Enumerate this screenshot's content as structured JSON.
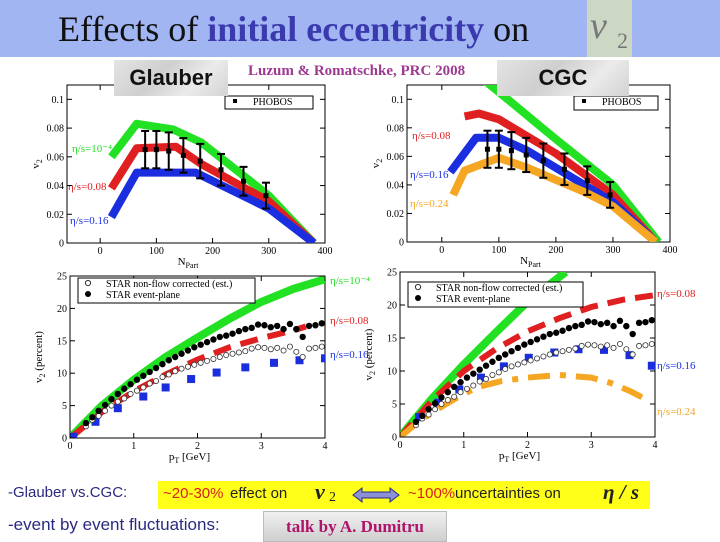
{
  "slide": {
    "title_part1": "Effects of ",
    "title_highlight": "initial eccentricity",
    "title_part2": " on",
    "title_symbol": "v",
    "title_symbol_sub": "2",
    "label_left": "Glauber",
    "label_right": "CGC",
    "reference": "Luzum & Romatschke, PRC 2008"
  },
  "footer": {
    "line1_prefix": "-Glauber vs.CGC:",
    "effect_pct": "~20-30%",
    "effect_text": " effect on",
    "v2_symbol": "v",
    "v2_sub": "2",
    "arrow_icon": "double-arrow-icon",
    "uncert_pct": "~100%",
    "uncert_text": "  uncertainties on",
    "eta_s": "η / s",
    "line2_prefix": "-event by event fluctuations:",
    "talk_button": "talk by A. Dumitru"
  },
  "colors": {
    "green": "#22e022",
    "red": "#e02020",
    "blue": "#1a2ee0",
    "orange": "#f5a623",
    "black": "#000000",
    "highlight": "#ffff1a",
    "title_bar": "#a0b5f2"
  },
  "chart_data": [
    {
      "type": "line",
      "panel": "Glauber",
      "xlabel": "N",
      "xlabel_sub": "Part",
      "ylabel": "v",
      "ylabel_sub": "2",
      "xlim": [
        -59,
        400
      ],
      "ylim": [
        0,
        0.11
      ],
      "xticks": [
        "0",
        "100",
        "200",
        "300",
        "400"
      ],
      "xtick_values": [
        0,
        100,
        200,
        300,
        400
      ],
      "yticks": [
        "0",
        "0.02",
        "0.04",
        "0.06",
        "0.08",
        "0.1"
      ],
      "ytick_values": [
        0,
        0.02,
        0.04,
        0.06,
        0.08,
        0.1
      ],
      "legend": {
        "placement": "top-right",
        "entries": [
          "PHOBOS"
        ]
      },
      "series": [
        {
          "name": "η/s=10⁻⁴",
          "color": "#22e022",
          "style": "band",
          "x": [
            20,
            65,
            130,
            180,
            300,
            380
          ],
          "y": [
            0.06,
            0.083,
            0.079,
            0.07,
            0.033,
            0
          ]
        },
        {
          "name": "η/s=0.08",
          "color": "#e02020",
          "style": "band",
          "x": [
            20,
            65,
            135,
            180,
            300,
            380
          ],
          "y": [
            0.038,
            0.066,
            0.067,
            0.055,
            0.029,
            0
          ]
        },
        {
          "name": "η/s=0.16",
          "color": "#1a2ee0",
          "style": "band",
          "x": [
            20,
            65,
            170,
            300,
            380
          ],
          "y": [
            0.018,
            0.049,
            0.049,
            0.024,
            0
          ]
        },
        {
          "name": "PHOBOS",
          "color": "#000000",
          "style": "errorbar",
          "x": [
            80,
            100,
            122,
            148,
            178,
            215,
            255,
            295
          ],
          "y": [
            0.065,
            0.065,
            0.064,
            0.061,
            0.057,
            0.051,
            0.043,
            0.033
          ],
          "err": [
            0.013,
            0.013,
            0.013,
            0.012,
            0.012,
            0.011,
            0.01,
            0.009
          ]
        }
      ]
    },
    {
      "type": "line",
      "panel": "CGC",
      "xlabel": "N",
      "xlabel_sub": "Part",
      "ylabel": "v",
      "ylabel_sub": "2",
      "xlim": [
        -61,
        400
      ],
      "ylim": [
        0,
        0.11
      ],
      "xticks": [
        "0",
        "100",
        "200",
        "300",
        "400"
      ],
      "xtick_values": [
        0,
        100,
        200,
        300,
        400
      ],
      "yticks": [
        "0",
        "0.02",
        "0.04",
        "0.06",
        "0.08",
        "0.1"
      ],
      "ytick_values": [
        0,
        0.02,
        0.04,
        0.06,
        0.08,
        0.1
      ],
      "legend": {
        "placement": "top-right",
        "entries": [
          "PHOBOS"
        ]
      },
      "series": [
        {
          "name": "",
          "color": "#22e022",
          "style": "band",
          "x": [
            60,
            100,
            200,
            300,
            380
          ],
          "y": [
            0.118,
            0.105,
            0.072,
            0.04,
            0
          ]
        },
        {
          "name": "η/s=0.08",
          "color": "#e02020",
          "style": "band",
          "x": [
            40,
            65,
            100,
            200,
            300,
            375
          ],
          "y": [
            0.088,
            0.09,
            0.086,
            0.062,
            0.033,
            0
          ]
        },
        {
          "name": "η/s=0.16",
          "color": "#1a2ee0",
          "style": "band",
          "x": [
            15,
            60,
            100,
            150,
            250,
            300,
            375
          ],
          "y": [
            0.049,
            0.073,
            0.073,
            0.064,
            0.04,
            0.028,
            0
          ]
        },
        {
          "name": "η/s=0.24",
          "color": "#f5a623",
          "style": "band",
          "x": [
            20,
            40,
            100,
            150,
            250,
            300,
            375
          ],
          "y": [
            0.033,
            0.05,
            0.059,
            0.052,
            0.035,
            0.025,
            0
          ]
        },
        {
          "name": "PHOBOS",
          "color": "#000000",
          "style": "errorbar",
          "x": [
            80,
            100,
            122,
            148,
            178,
            215,
            255,
            295
          ],
          "y": [
            0.065,
            0.065,
            0.064,
            0.061,
            0.057,
            0.051,
            0.043,
            0.033
          ],
          "err": [
            0.013,
            0.013,
            0.013,
            0.012,
            0.012,
            0.011,
            0.01,
            0.009
          ]
        }
      ]
    },
    {
      "type": "line",
      "panel": "Glauber",
      "xlabel": "p",
      "xlabel_sub": "T",
      "xlabel_unit": " [GeV]",
      "ylabel": "v",
      "ylabel_sub": "2",
      "ylabel_unit": " (percent)",
      "xlim": [
        0,
        4
      ],
      "ylim": [
        0,
        25
      ],
      "xticks": [
        "0",
        "1",
        "2",
        "3",
        "4"
      ],
      "xtick_values": [
        0,
        1,
        2,
        3,
        4
      ],
      "yticks": [
        "0",
        "5",
        "10",
        "15",
        "20",
        "25"
      ],
      "ytick_values": [
        0,
        5,
        10,
        15,
        20,
        25
      ],
      "legend": {
        "placement": "top-left",
        "entries": [
          "STAR non-flow corrected (est.)",
          "STAR event-plane"
        ]
      },
      "series": [
        {
          "name": "η/s=10⁻⁴",
          "color": "#22e022",
          "style": "band",
          "x": [
            0,
            0.5,
            1,
            1.5,
            2,
            2.5,
            3,
            3.5,
            4
          ],
          "y": [
            0,
            5,
            9,
            12.5,
            15.5,
            18.4,
            21,
            23,
            24.5
          ]
        },
        {
          "name": "η/s=0.08",
          "color": "#e02020",
          "style": "dash",
          "x": [
            0,
            0.5,
            1,
            1.5,
            2,
            2.5,
            3,
            3.5,
            3.7
          ],
          "y": [
            0,
            4,
            7.2,
            9.8,
            12.1,
            14,
            15.4,
            16.6,
            17.2
          ]
        },
        {
          "name": "η/s=0.16",
          "color": "#1a2ee0",
          "style": "square",
          "x": [
            0.05,
            0.4,
            0.75,
            1.15,
            1.5,
            1.9,
            2.3,
            2.75,
            3.2,
            3.6,
            4
          ],
          "y": [
            0.2,
            2.5,
            4.6,
            6.4,
            7.8,
            9.1,
            10.1,
            10.9,
            11.6,
            12,
            12.3
          ]
        },
        {
          "name": "STAR non-flow corrected (est.)",
          "color": "#000000",
          "style": "open",
          "x": [
            0.25,
            0.35,
            0.45,
            0.55,
            0.65,
            0.75,
            0.85,
            0.95,
            1.05,
            1.15,
            1.25,
            1.35,
            1.45,
            1.55,
            1.65,
            1.75,
            1.85,
            1.95,
            2.05,
            2.15,
            2.25,
            2.35,
            2.45,
            2.55,
            2.65,
            2.75,
            2.85,
            2.95,
            3.05,
            3.15,
            3.25,
            3.35,
            3.45,
            3.55,
            3.65,
            3.75,
            3.85,
            3.95
          ],
          "y": [
            1.8,
            2.8,
            3.4,
            4.2,
            5,
            5.6,
            6.1,
            6.8,
            7.3,
            7.8,
            8.4,
            8.8,
            9.4,
            9.8,
            10.3,
            10.7,
            11,
            11.3,
            11.6,
            11.9,
            12.2,
            12.5,
            12.8,
            13,
            13.2,
            13.4,
            13.8,
            14,
            13.9,
            13.7,
            13.9,
            13.5,
            14.1,
            13.3,
            12.5,
            13.8,
            13.9,
            14.1
          ]
        },
        {
          "name": "STAR event-plane",
          "color": "#000000",
          "style": "filled",
          "x": [
            0.25,
            0.35,
            0.45,
            0.55,
            0.65,
            0.75,
            0.85,
            0.95,
            1.05,
            1.15,
            1.25,
            1.35,
            1.45,
            1.55,
            1.65,
            1.75,
            1.85,
            1.95,
            2.05,
            2.15,
            2.25,
            2.35,
            2.45,
            2.55,
            2.65,
            2.75,
            2.85,
            2.95,
            3.05,
            3.15,
            3.25,
            3.35,
            3.45,
            3.55,
            3.65,
            3.75,
            3.85,
            3.95
          ],
          "y": [
            2.3,
            3.2,
            4.2,
            5.1,
            6,
            6.8,
            7.6,
            8.3,
            9,
            9.6,
            10.2,
            10.8,
            11.4,
            12,
            12.5,
            13,
            13.5,
            14,
            14.4,
            14.8,
            15.2,
            15.6,
            15.8,
            16.1,
            16.5,
            16.8,
            17,
            17.5,
            17.4,
            17.1,
            17.3,
            16.8,
            17.6,
            16.8,
            15.6,
            17.3,
            17.4,
            17.7
          ]
        }
      ]
    },
    {
      "type": "line",
      "panel": "CGC",
      "xlabel": "p",
      "xlabel_sub": "T",
      "xlabel_unit": " [GeV]",
      "ylabel": "v",
      "ylabel_sub": "2",
      "ylabel_unit": " (percent)",
      "xlim": [
        0,
        4
      ],
      "ylim": [
        0,
        25
      ],
      "xticks": [
        "0",
        "1",
        "2",
        "3",
        "4"
      ],
      "xtick_values": [
        0,
        1,
        2,
        3,
        4
      ],
      "yticks": [
        "0",
        "5",
        "10",
        "15",
        "20",
        "25"
      ],
      "ytick_values": [
        0,
        5,
        10,
        15,
        20,
        25
      ],
      "legend": {
        "placement": "top-left",
        "entries": [
          "STAR non-flow corrected (est.)",
          "STAR event-plane"
        ]
      },
      "series": [
        {
          "name": "",
          "color": "#22e022",
          "style": "band",
          "x": [
            0,
            0.5,
            1,
            1.5,
            2,
            2.6
          ],
          "y": [
            0,
            5.8,
            11,
            15.8,
            20.5,
            25
          ]
        },
        {
          "name": "η/s=0.08",
          "color": "#e02020",
          "style": "dash",
          "x": [
            0,
            0.5,
            1,
            1.5,
            2,
            2.5,
            3,
            3.5,
            4
          ],
          "y": [
            0,
            5.5,
            10,
            13.3,
            16,
            18,
            19.7,
            20.8,
            21.5
          ]
        },
        {
          "name": "η/s=0.16",
          "color": "#1a2ee0",
          "style": "square",
          "x": [
            0.3,
            0.6,
            0.93,
            1.27,
            1.63,
            2.02,
            2.42,
            2.8,
            3.2,
            3.6,
            3.95
          ],
          "y": [
            3,
            5.2,
            7.2,
            9,
            10.7,
            12,
            12.8,
            13.3,
            13.2,
            12.4,
            10.8
          ]
        },
        {
          "name": "η/s=0.24",
          "color": "#f5a623",
          "style": "dashdot",
          "x": [
            0,
            0.3,
            0.6,
            0.9,
            1.2,
            1.6,
            2,
            2.5,
            3,
            3.3,
            3.6,
            3.9
          ],
          "y": [
            0,
            2.4,
            4.3,
            6,
            7.5,
            8.5,
            9,
            9.4,
            9,
            8.2,
            7,
            5.5
          ]
        },
        {
          "name": "STAR non-flow corrected (est.)",
          "color": "#000000",
          "style": "open",
          "x": [
            0.25,
            0.35,
            0.45,
            0.55,
            0.65,
            0.75,
            0.85,
            0.95,
            1.05,
            1.15,
            1.25,
            1.35,
            1.45,
            1.55,
            1.65,
            1.75,
            1.85,
            1.95,
            2.05,
            2.15,
            2.25,
            2.35,
            2.45,
            2.55,
            2.65,
            2.75,
            2.85,
            2.95,
            3.05,
            3.15,
            3.25,
            3.35,
            3.45,
            3.55,
            3.65,
            3.75,
            3.85,
            3.95
          ],
          "y": [
            1.8,
            2.8,
            3.4,
            4.2,
            5,
            5.6,
            6.1,
            6.8,
            7.3,
            7.8,
            8.4,
            8.8,
            9.4,
            9.8,
            10.3,
            10.7,
            11,
            11.3,
            11.6,
            11.9,
            12.2,
            12.5,
            12.8,
            13,
            13.2,
            13.4,
            13.8,
            14,
            13.9,
            13.7,
            13.9,
            13.5,
            14.1,
            13.3,
            12.5,
            13.8,
            13.9,
            14.1
          ]
        },
        {
          "name": "STAR event-plane",
          "color": "#000000",
          "style": "filled",
          "x": [
            0.25,
            0.35,
            0.45,
            0.55,
            0.65,
            0.75,
            0.85,
            0.95,
            1.05,
            1.15,
            1.25,
            1.35,
            1.45,
            1.55,
            1.65,
            1.75,
            1.85,
            1.95,
            2.05,
            2.15,
            2.25,
            2.35,
            2.45,
            2.55,
            2.65,
            2.75,
            2.85,
            2.95,
            3.05,
            3.15,
            3.25,
            3.35,
            3.45,
            3.55,
            3.65,
            3.75,
            3.85,
            3.95
          ],
          "y": [
            2.3,
            3.2,
            4.2,
            5.1,
            6,
            6.8,
            7.6,
            8.3,
            9,
            9.6,
            10.2,
            10.8,
            11.4,
            12,
            12.5,
            13,
            13.5,
            14,
            14.4,
            14.8,
            15.2,
            15.6,
            15.8,
            16.1,
            16.5,
            16.8,
            17,
            17.5,
            17.4,
            17.1,
            17.3,
            16.8,
            17.6,
            16.8,
            15.6,
            17.3,
            17.4,
            17.7
          ]
        }
      ]
    }
  ]
}
